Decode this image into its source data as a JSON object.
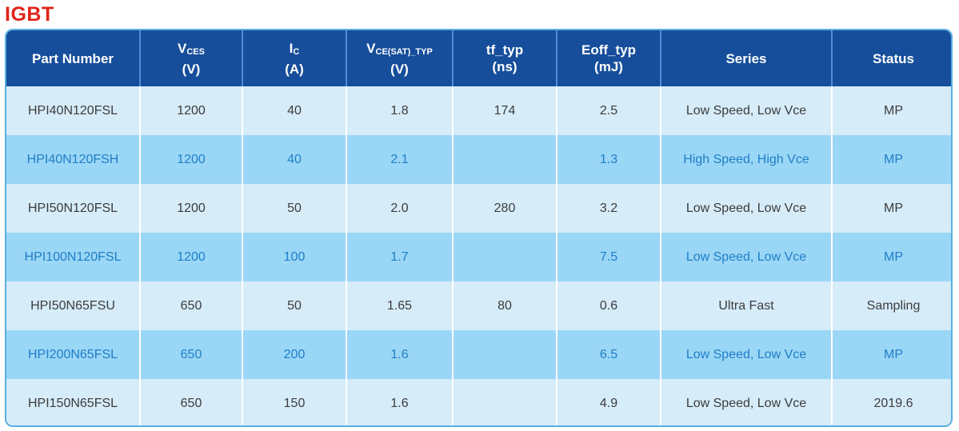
{
  "title": "IGBT",
  "headers": {
    "part_number": "Part Number",
    "vces_main": "V",
    "vces_sub": "CES",
    "vces_unit": "(V)",
    "ic_main": "I",
    "ic_sub": "C",
    "ic_unit": "(A)",
    "vcesat_main": "V",
    "vcesat_sub": "CE(SAT)_TYP",
    "vcesat_unit": "(V)",
    "tf_main": "tf_typ",
    "tf_unit": "(ns)",
    "eoff_main": "Eoff_typ",
    "eoff_unit": "(mJ)",
    "series": "Series",
    "status": "Status"
  },
  "rows": [
    {
      "part": "HPI40N120FSL",
      "vces": "1200",
      "ic": "40",
      "vcesat": "1.8",
      "tf": "174",
      "eoff": "2.5",
      "series": "Low Speed, Low Vce",
      "status": "MP"
    },
    {
      "part": "HPI40N120FSH",
      "vces": "1200",
      "ic": "40",
      "vcesat": "2.1",
      "tf": "",
      "eoff": "1.3",
      "series": "High Speed, High Vce",
      "status": "MP"
    },
    {
      "part": "HPI50N120FSL",
      "vces": "1200",
      "ic": "50",
      "vcesat": "2.0",
      "tf": "280",
      "eoff": "3.2",
      "series": "Low Speed, Low Vce",
      "status": "MP"
    },
    {
      "part": "HPI100N120FSL",
      "vces": "1200",
      "ic": "100",
      "vcesat": "1.7",
      "tf": "",
      "eoff": "7.5",
      "series": "Low Speed, Low Vce",
      "status": "MP"
    },
    {
      "part": "HPI50N65FSU",
      "vces": "650",
      "ic": "50",
      "vcesat": "1.65",
      "tf": "80",
      "eoff": "0.6",
      "series": "Ultra Fast",
      "status": "Sampling"
    },
    {
      "part": "HPI200N65FSL",
      "vces": "650",
      "ic": "200",
      "vcesat": "1.6",
      "tf": "",
      "eoff": "6.5",
      "series": "Low Speed, Low Vce",
      "status": "MP"
    },
    {
      "part": "HPI150N65FSL",
      "vces": "650",
      "ic": "150",
      "vcesat": "1.6",
      "tf": "",
      "eoff": "4.9",
      "series": "Low Speed, Low Vce",
      "status": "2019.6"
    }
  ],
  "colors": {
    "title": "#e0231a",
    "header_bg": "#164e9b",
    "row_light": "#d6ecf9",
    "row_dark": "#9ad6f6",
    "text_dark": "#3c3c3c",
    "text_blue": "#1f7fc6"
  }
}
